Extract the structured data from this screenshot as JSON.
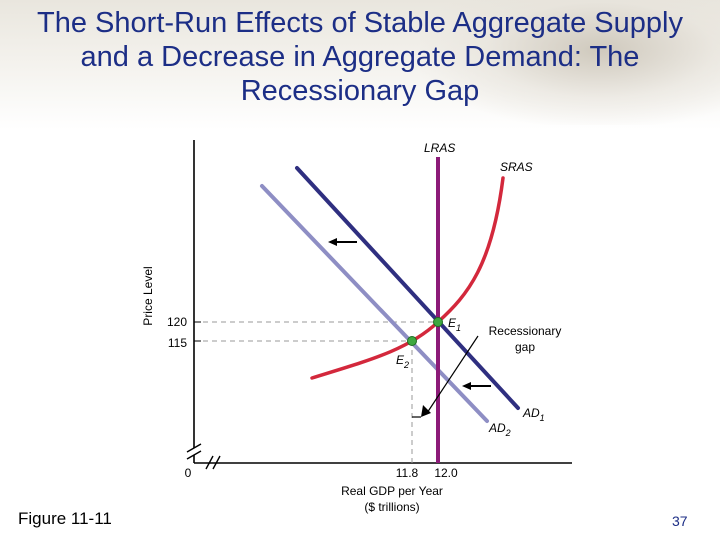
{
  "slide": {
    "title": "The Short-Run Effects of Stable Aggregate Supply and a Decrease in Aggregate Demand: The Recessionary Gap",
    "figure_label": "Figure 11-11",
    "page_number": "37"
  },
  "diagram": {
    "y_axis_label": "Price Level",
    "x_axis_label_line1": "Real GDP per Year",
    "x_axis_label_line2": "($ trillions)",
    "origin_label": "0",
    "price_ticks": [
      "120",
      "115"
    ],
    "gdp_ticks": [
      "11.8",
      "12.0"
    ],
    "lras_label": "LRAS",
    "sras_label": "SRAS",
    "ad1_label": "AD",
    "ad1_sub": "1",
    "ad2_label": "AD",
    "ad2_sub": "2",
    "e1_label": "E",
    "e1_sub": "1",
    "e2_label": "E",
    "e2_sub": "2",
    "gap_label_line1": "Recessionary",
    "gap_label_line2": "gap",
    "colors": {
      "title": "#1c2e86",
      "lras": "#8c1a78",
      "sras": "#d3283c",
      "ad1": "#2f2f80",
      "ad2": "#8e8ec4",
      "equilibrium": "#3ea840"
    }
  }
}
